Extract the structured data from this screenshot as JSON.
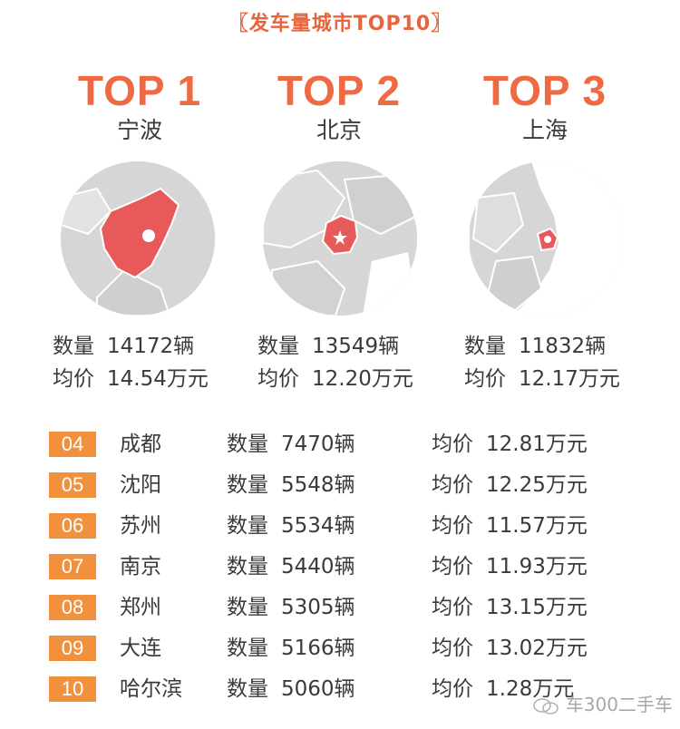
{
  "header": {
    "title": "发车量城市TOP10",
    "bracket_left": "〖",
    "bracket_right": "〗"
  },
  "top3": [
    {
      "rank": "TOP 1",
      "city": "宁波",
      "count_label": "数量",
      "count": "14172辆",
      "price_label": "均价",
      "price": "14.54万元"
    },
    {
      "rank": "TOP 2",
      "city": "北京",
      "count_label": "数量",
      "count": "13549辆",
      "price_label": "均价",
      "price": "12.20万元"
    },
    {
      "rank": "TOP 3",
      "city": "上海",
      "count_label": "数量",
      "count": "11832辆",
      "price_label": "均价",
      "price": "12.17万元"
    }
  ],
  "list": [
    {
      "rank": "04",
      "city": "成都",
      "count_label": "数量",
      "count": "7470辆",
      "price_label": "均价",
      "price": "12.81万元"
    },
    {
      "rank": "05",
      "city": "沈阳",
      "count_label": "数量",
      "count": "5548辆",
      "price_label": "均价",
      "price": "12.25万元"
    },
    {
      "rank": "06",
      "city": "苏州",
      "count_label": "数量",
      "count": "5534辆",
      "price_label": "均价",
      "price": "11.57万元"
    },
    {
      "rank": "07",
      "city": "南京",
      "count_label": "数量",
      "count": "5440辆",
      "price_label": "均价",
      "price": "11.93万元"
    },
    {
      "rank": "08",
      "city": "郑州",
      "count_label": "数量",
      "count": "5305辆",
      "price_label": "均价",
      "price": "13.15万元"
    },
    {
      "rank": "09",
      "city": "大连",
      "count_label": "数量",
      "count": "5166辆",
      "price_label": "均价",
      "price": "13.02万元"
    },
    {
      "rank": "10",
      "city": "哈尔滨",
      "count_label": "数量",
      "count": "5060辆",
      "price_label": "均价",
      "price": "1.28万元"
    }
  ],
  "watermark": "车300二手车",
  "colors": {
    "accent": "#ed6a43",
    "badge": "#f2913d",
    "highlight": "#e85a5a",
    "map_land": "#d6d6d6"
  },
  "icons": {
    "map": "city-map-icon",
    "watermark": "wechat-icon"
  }
}
